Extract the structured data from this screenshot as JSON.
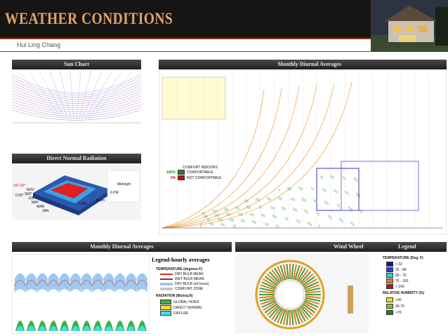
{
  "header": {
    "title": "WEATHER CONDITIONS",
    "subtitle": "Hui Ling Chang"
  },
  "panels": {
    "sun_chart": {
      "title": "Sun Chart"
    },
    "psychrometric": {
      "title": "Monthly Diurnal Averages",
      "comfort_title": "COMFORT INDOORS",
      "comfortable_pct": "100%",
      "comfortable": "COMFORTABLE",
      "not_comfortable_pct": "0%",
      "not_comfortable": "NOT COMFORTABLE"
    },
    "radiation": {
      "title": "Direct Normal Radiation",
      "max_label": "197.63*",
      "min_label": "0.00*",
      "hours": [
        "Midnight",
        "6 PM",
        "Noon",
        "6 AM"
      ],
      "months": [
        "NOV",
        "SEP",
        "JUL",
        "MAY",
        "MAR",
        "JAN"
      ]
    },
    "diurnal": {
      "title": "Monthly Diurnal Averages",
      "legend_title": "Legend-hourly averages",
      "temperature_heading": "TEMPERATURE (degrees F)",
      "temperature_items": [
        "DRY BULB MEAN",
        "WET BULB MEAN",
        "DRY BULB (all hours)",
        "COMFORT ZONE"
      ],
      "radiation_heading": "RADIATION (Btu/sq.ft)",
      "radiation_items": [
        "GLOBAL HORIZ",
        "DIRECT NORMAL",
        "DIFFUSE"
      ]
    },
    "wind_wheel": {
      "title": "Wind Wheel",
      "legend_title": "Legend",
      "temperature_heading": "TEMPERATURE (Deg. F)",
      "temperature_items": [
        "< 32",
        "32  -  68",
        "68  -  75",
        "75  -  100",
        "> 100"
      ],
      "humidity_heading": "RELATIVE HUMIDITY (%)",
      "humidity_items": [
        "<30",
        "30-70",
        ">70"
      ]
    }
  }
}
